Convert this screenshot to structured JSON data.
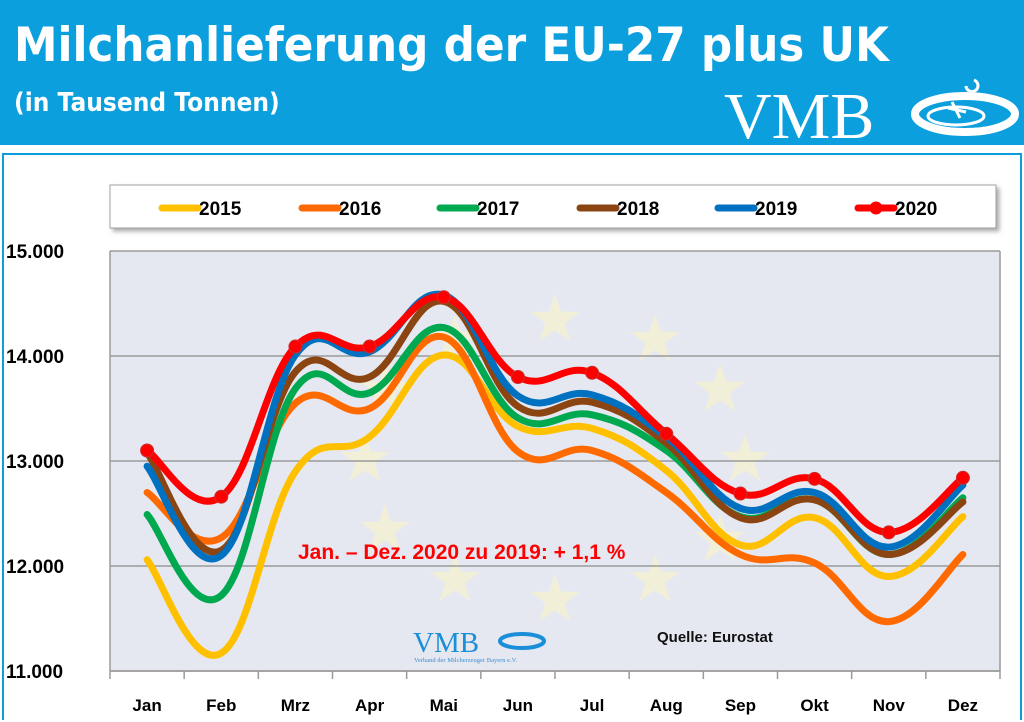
{
  "header": {
    "title": "Milchanlieferung der EU-27 plus UK",
    "subtitle": "(in Tausend Tonnen)",
    "logo_text": "VMB",
    "small_logo_text": "VMB",
    "small_logo_caption": "Verband der Milcherzeuger Bayern e.V.",
    "background_color": "#0c9fde"
  },
  "chart_data": {
    "type": "line",
    "title": "Milchanlieferung der EU-27 plus UK",
    "subtitle": "(in Tausend Tonnen)",
    "xlabel": "",
    "ylabel": "",
    "categories": [
      "Jan",
      "Feb",
      "Mrz",
      "Apr",
      "Mai",
      "Jun",
      "Jul",
      "Aug",
      "Sep",
      "Okt",
      "Nov",
      "Dez"
    ],
    "ylim": [
      11000,
      15000
    ],
    "yticks": [
      11000,
      12000,
      13000,
      14000,
      15000
    ],
    "ytick_labels": [
      "11.000",
      "12.000",
      "13.000",
      "14.000",
      "15.000"
    ],
    "grid": true,
    "smooth": true,
    "legend_position": "top",
    "series": [
      {
        "name": "2015",
        "color": "#ffc000",
        "markers": false,
        "values": [
          12060,
          11170,
          12900,
          13230,
          14010,
          13330,
          13310,
          12910,
          12200,
          12460,
          11900,
          12470
        ]
      },
      {
        "name": "2016",
        "color": "#ff6a00",
        "markers": false,
        "values": [
          12700,
          12270,
          13550,
          13500,
          14180,
          13090,
          13100,
          12700,
          12110,
          12030,
          11470,
          12110
        ]
      },
      {
        "name": "2017",
        "color": "#00a94f",
        "markers": false,
        "values": [
          12490,
          11720,
          13690,
          13650,
          14270,
          13410,
          13440,
          13100,
          12470,
          12630,
          12110,
          12650
        ]
      },
      {
        "name": "2018",
        "color": "#8b4513",
        "markers": false,
        "values": [
          13080,
          12150,
          13850,
          13800,
          14520,
          13520,
          13560,
          13170,
          12460,
          12630,
          12110,
          12610
        ]
      },
      {
        "name": "2019",
        "color": "#0070c0",
        "markers": false,
        "values": [
          12950,
          12100,
          14010,
          14040,
          14580,
          13620,
          13630,
          13230,
          12550,
          12700,
          12180,
          12770
        ]
      },
      {
        "name": "2020",
        "color": "#ff0000",
        "markers": true,
        "values": [
          13100,
          12660,
          14090,
          14090,
          14560,
          13800,
          13840,
          13260,
          12690,
          12830,
          12320,
          12840
        ]
      }
    ],
    "annotations": {
      "change": "Jan. – Dez. 2020 zu 2019: + 1,1 %",
      "source": "Quelle: Eurostat"
    }
  }
}
